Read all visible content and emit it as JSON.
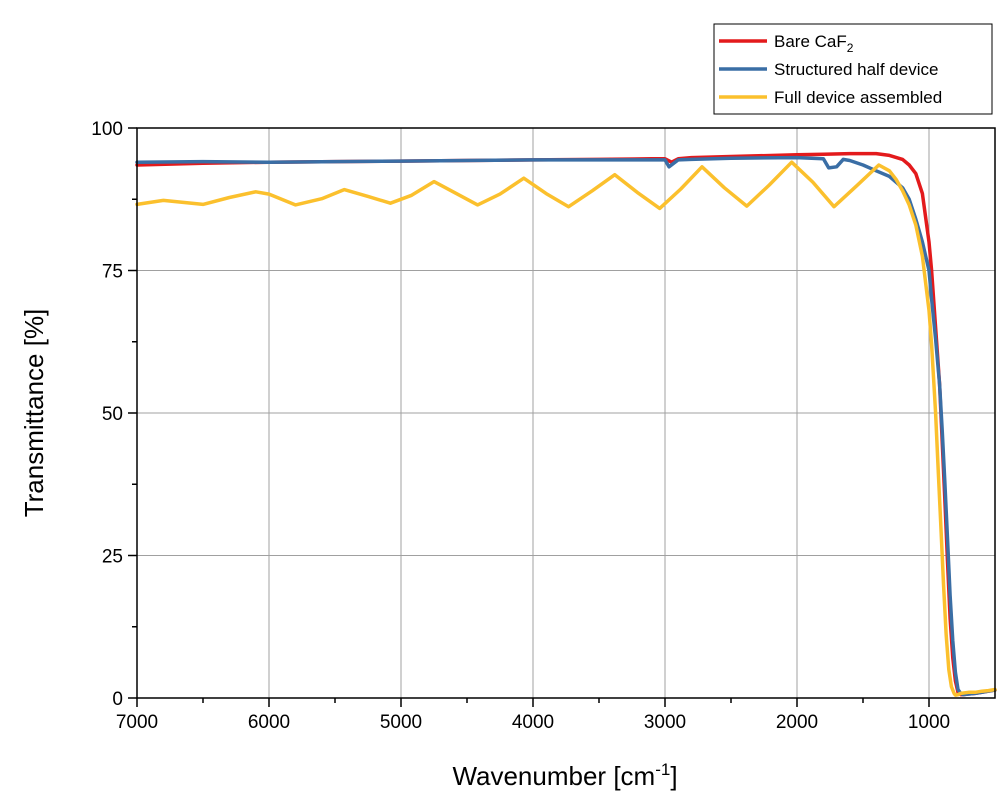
{
  "chart_data": {
    "type": "line",
    "title": "",
    "xlabel": {
      "text": "Wavenumber [cm",
      "sup": "-1",
      "suffix": "]"
    },
    "ylabel": "Transmittance [%]",
    "xlim": [
      7000,
      500
    ],
    "ylim": [
      0,
      100
    ],
    "x_reversed": true,
    "xticks": [
      7000,
      6000,
      5000,
      4000,
      3000,
      2000,
      1000
    ],
    "yticks": [
      0,
      25,
      50,
      75,
      100
    ],
    "grid": true,
    "legend_position": "top-right",
    "series": [
      {
        "name": "Bare CaF",
        "name_sub": "2",
        "color": "#e31a1c",
        "x": [
          7000,
          6500,
          6000,
          5500,
          5000,
          4500,
          4000,
          3500,
          3100,
          3000,
          2950,
          2900,
          2800,
          2500,
          2000,
          1800,
          1600,
          1400,
          1300,
          1200,
          1150,
          1100,
          1050,
          1000,
          980,
          950,
          920,
          900,
          880,
          860,
          840,
          820,
          800,
          780,
          760,
          740,
          700,
          650,
          600,
          550,
          500
        ],
        "y": [
          93.5,
          93.8,
          94.0,
          94.1,
          94.2,
          94.3,
          94.4,
          94.5,
          94.6,
          94.6,
          94.0,
          94.6,
          94.8,
          95.0,
          95.3,
          95.4,
          95.5,
          95.5,
          95.2,
          94.5,
          93.5,
          92.0,
          88.5,
          80.0,
          75.0,
          65.0,
          55.0,
          45.0,
          35.0,
          24.0,
          14.0,
          7.0,
          3.0,
          1.0,
          0.6,
          0.6,
          0.7,
          0.8,
          1.0,
          1.2,
          1.4
        ]
      },
      {
        "name": "Structured half device",
        "color": "#3a6ea5",
        "x": [
          7000,
          6500,
          6000,
          5500,
          5000,
          4500,
          4000,
          3500,
          3100,
          3000,
          2970,
          2900,
          2800,
          2500,
          2000,
          1800,
          1760,
          1700,
          1650,
          1600,
          1500,
          1400,
          1300,
          1200,
          1150,
          1100,
          1050,
          1000,
          980,
          950,
          920,
          900,
          880,
          860,
          840,
          820,
          800,
          780,
          760,
          740,
          700,
          650,
          600,
          550,
          500
        ],
        "y": [
          94.0,
          94.1,
          94.0,
          94.1,
          94.2,
          94.3,
          94.4,
          94.4,
          94.4,
          94.4,
          93.2,
          94.4,
          94.5,
          94.7,
          94.8,
          94.6,
          93.0,
          93.2,
          94.5,
          94.3,
          93.5,
          92.5,
          91.5,
          89.5,
          87.5,
          84.0,
          80.0,
          75.0,
          70.0,
          63.0,
          55.0,
          47.0,
          38.0,
          28.0,
          18.0,
          10.0,
          4.5,
          1.5,
          0.8,
          0.6,
          0.7,
          0.8,
          1.0,
          1.2,
          1.4
        ]
      },
      {
        "name": "Full device assembled",
        "color": "#fbc02d",
        "x": [
          7000,
          6800,
          6500,
          6300,
          6100,
          6000,
          5800,
          5600,
          5430,
          5250,
          5080,
          4920,
          4750,
          4580,
          4420,
          4250,
          4070,
          3900,
          3730,
          3550,
          3380,
          3210,
          3040,
          2880,
          2720,
          2550,
          2380,
          2210,
          2040,
          1880,
          1720,
          1550,
          1380,
          1300,
          1250,
          1200,
          1150,
          1100,
          1050,
          1000,
          980,
          950,
          930,
          910,
          890,
          870,
          850,
          830,
          810,
          800,
          780,
          760,
          700,
          650,
          600,
          550,
          500
        ],
        "y": [
          86.6,
          87.3,
          86.6,
          87.8,
          88.8,
          88.4,
          86.5,
          87.6,
          89.2,
          88.0,
          86.8,
          88.2,
          90.6,
          88.5,
          86.5,
          88.4,
          91.2,
          88.5,
          86.2,
          89.0,
          91.8,
          88.7,
          85.9,
          89.3,
          93.2,
          89.5,
          86.3,
          90.0,
          94.0,
          90.5,
          86.2,
          89.8,
          93.5,
          92.5,
          91.0,
          89.0,
          86.5,
          83.0,
          77.5,
          68.0,
          62.0,
          50.0,
          40.0,
          30.0,
          20.0,
          11.0,
          5.0,
          2.0,
          0.8,
          0.5,
          0.6,
          0.8,
          1.0,
          1.0,
          1.2,
          1.3,
          1.5
        ]
      }
    ]
  }
}
